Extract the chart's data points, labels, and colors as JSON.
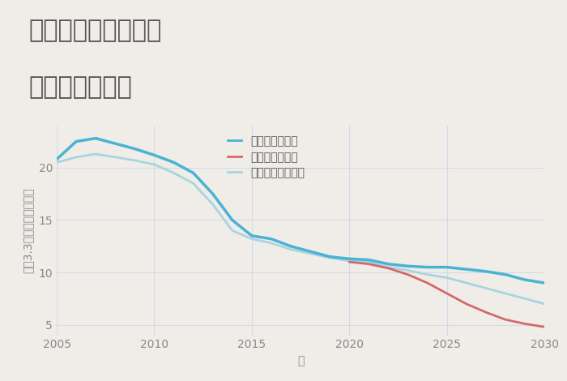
{
  "title_line1": "三重県伊賀市丸柱の",
  "title_line2": "土地の価格推移",
  "xlabel": "年",
  "ylabel": "坪（3.3㎡）単価（万円）",
  "background_color": "#f0ede8",
  "plot_bg_color": "#f0ede8",
  "title_bg_color": "#ffffff",
  "xlim": [
    2005,
    2030
  ],
  "ylim": [
    4,
    24
  ],
  "yticks": [
    5,
    10,
    15,
    20
  ],
  "xticks": [
    2005,
    2010,
    2015,
    2020,
    2025,
    2030
  ],
  "series": {
    "good": {
      "label": "グッドシナリオ",
      "color": "#4ab3d4",
      "linewidth": 2.5,
      "x": [
        2005,
        2006,
        2007,
        2008,
        2009,
        2010,
        2011,
        2012,
        2013,
        2014,
        2015,
        2016,
        2017,
        2018,
        2019,
        2020,
        2021,
        2022,
        2023,
        2024,
        2025,
        2026,
        2027,
        2028,
        2029,
        2030
      ],
      "y": [
        20.8,
        22.5,
        22.8,
        22.3,
        21.8,
        21.2,
        20.5,
        19.5,
        17.5,
        15.0,
        13.5,
        13.2,
        12.5,
        12.0,
        11.5,
        11.3,
        11.2,
        10.8,
        10.6,
        10.5,
        10.5,
        10.3,
        10.1,
        9.8,
        9.3,
        9.0
      ]
    },
    "bad": {
      "label": "バッドシナリオ",
      "color": "#d4696b",
      "linewidth": 2.0,
      "x": [
        2020,
        2021,
        2022,
        2023,
        2024,
        2025,
        2026,
        2027,
        2028,
        2029,
        2030
      ],
      "y": [
        11.0,
        10.8,
        10.4,
        9.8,
        9.0,
        8.0,
        7.0,
        6.2,
        5.5,
        5.1,
        4.8
      ]
    },
    "normal": {
      "label": "ノーマルシナリオ",
      "color": "#a8d4e0",
      "linewidth": 2.0,
      "x": [
        2005,
        2006,
        2007,
        2008,
        2009,
        2010,
        2011,
        2012,
        2013,
        2014,
        2015,
        2016,
        2017,
        2018,
        2019,
        2020,
        2021,
        2022,
        2023,
        2024,
        2025,
        2026,
        2027,
        2028,
        2029,
        2030
      ],
      "y": [
        20.5,
        21.0,
        21.3,
        21.0,
        20.7,
        20.3,
        19.5,
        18.5,
        16.5,
        14.0,
        13.2,
        12.8,
        12.2,
        11.8,
        11.4,
        11.1,
        11.0,
        10.5,
        10.2,
        9.8,
        9.5,
        9.0,
        8.5,
        8.0,
        7.5,
        7.0
      ]
    }
  },
  "legend_fontsize": 10,
  "title_fontsize": 22,
  "title_color": "#555555",
  "axis_label_fontsize": 10,
  "tick_fontsize": 10,
  "tick_color": "#888888",
  "grid_color": "#c8d8e8",
  "grid_alpha": 0.8
}
